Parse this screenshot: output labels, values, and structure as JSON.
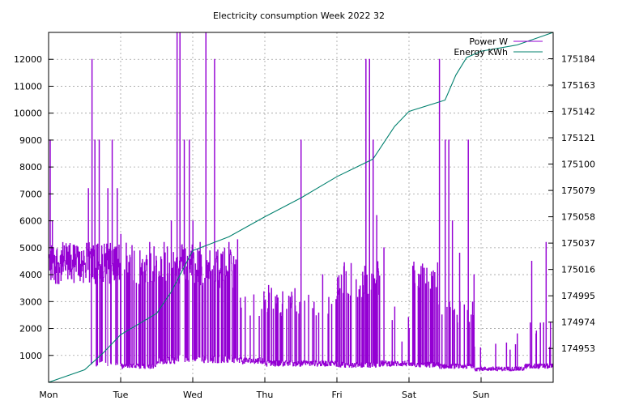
{
  "chart_data": {
    "type": "line",
    "title": "Electricity consumption Week 2022 32",
    "x_categories": [
      "Mon",
      "Tue",
      "Wed",
      "Thu",
      "Fri",
      "Sat",
      "Sun"
    ],
    "xlim": [
      0,
      7
    ],
    "y_left": {
      "ticks": [
        1000,
        2000,
        3000,
        4000,
        5000,
        6000,
        7000,
        8000,
        9000,
        10000,
        11000,
        12000
      ],
      "ylim": [
        0,
        13000
      ]
    },
    "y_right": {
      "ticks": [
        174953,
        174974,
        174995,
        175016,
        175037,
        175058,
        175079,
        175100,
        175121,
        175142,
        175163,
        175184
      ],
      "ylim": [
        174926,
        175205
      ]
    },
    "grid": true,
    "legend_position": "top-right",
    "series": [
      {
        "name": "Power W",
        "axis": "left",
        "color": "#9400d3",
        "activity": [
          [
            0.0,
            0.5,
            1.0,
            900,
            5200
          ],
          [
            0.5,
            1.0,
            0.85,
            700,
            5200
          ],
          [
            1.0,
            1.5,
            0.3,
            600,
            5200
          ],
          [
            1.5,
            1.8,
            0.5,
            800,
            5200
          ],
          [
            1.8,
            2.0,
            0.8,
            900,
            5200
          ],
          [
            2.0,
            2.6,
            0.6,
            850,
            5000
          ],
          [
            2.6,
            3.0,
            0.12,
            800,
            3500
          ],
          [
            3.0,
            3.6,
            0.2,
            700,
            3500
          ],
          [
            3.6,
            4.0,
            0.15,
            700,
            3500
          ],
          [
            4.0,
            4.6,
            0.35,
            650,
            4500
          ],
          [
            4.6,
            5.0,
            0.05,
            700,
            2500
          ],
          [
            5.0,
            5.4,
            0.35,
            650,
            4500
          ],
          [
            5.4,
            5.9,
            0.25,
            600,
            3000
          ],
          [
            5.9,
            6.6,
            0.05,
            500,
            1500
          ],
          [
            6.6,
            7.0,
            0.07,
            600,
            2500
          ]
        ],
        "spikes": [
          [
            0.02,
            9000
          ],
          [
            0.05,
            6000
          ],
          [
            0.55,
            7200
          ],
          [
            0.6,
            12000
          ],
          [
            0.64,
            9000
          ],
          [
            0.7,
            9000
          ],
          [
            0.82,
            7200
          ],
          [
            0.88,
            9000
          ],
          [
            0.95,
            7200
          ],
          [
            1.0,
            5500
          ],
          [
            1.4,
            5200
          ],
          [
            1.6,
            5200
          ],
          [
            1.7,
            6000
          ],
          [
            1.78,
            13000
          ],
          [
            1.82,
            13000
          ],
          [
            1.88,
            9000
          ],
          [
            1.95,
            9000
          ],
          [
            2.0,
            6000
          ],
          [
            2.1,
            5200
          ],
          [
            2.18,
            13000
          ],
          [
            2.3,
            12000
          ],
          [
            2.5,
            5200
          ],
          [
            2.62,
            5300
          ],
          [
            3.0,
            3000
          ],
          [
            3.05,
            3600
          ],
          [
            3.5,
            9000
          ],
          [
            3.8,
            4000
          ],
          [
            4.0,
            3200
          ],
          [
            4.4,
            12000
          ],
          [
            4.45,
            12000
          ],
          [
            4.5,
            9000
          ],
          [
            4.55,
            6200
          ],
          [
            4.65,
            5000
          ],
          [
            4.8,
            2800
          ],
          [
            4.9,
            1500
          ],
          [
            5.0,
            2000
          ],
          [
            5.42,
            12000
          ],
          [
            5.5,
            9000
          ],
          [
            5.55,
            9000
          ],
          [
            5.6,
            6000
          ],
          [
            5.7,
            4800
          ],
          [
            5.82,
            9000
          ],
          [
            5.9,
            4000
          ],
          [
            6.4,
            1200
          ],
          [
            6.5,
            1800
          ],
          [
            6.7,
            4500
          ],
          [
            6.76,
            1800
          ],
          [
            6.82,
            2200
          ],
          [
            6.9,
            5200
          ],
          [
            6.95,
            1300
          ]
        ]
      },
      {
        "name": "Energy KWh",
        "axis": "right",
        "color": "#00806e",
        "points": [
          [
            0.0,
            174926
          ],
          [
            0.5,
            174936
          ],
          [
            0.75,
            174949
          ],
          [
            1.0,
            174964
          ],
          [
            1.5,
            174981
          ],
          [
            1.7,
            174998
          ],
          [
            2.0,
            175031
          ],
          [
            2.5,
            175042
          ],
          [
            3.0,
            175058
          ],
          [
            3.5,
            175073
          ],
          [
            4.0,
            175090
          ],
          [
            4.5,
            175104
          ],
          [
            4.8,
            175130
          ],
          [
            5.0,
            175142
          ],
          [
            5.5,
            175151
          ],
          [
            5.65,
            175171
          ],
          [
            5.8,
            175185
          ],
          [
            6.0,
            175190
          ],
          [
            6.5,
            175195
          ],
          [
            7.0,
            175205
          ]
        ]
      }
    ]
  }
}
